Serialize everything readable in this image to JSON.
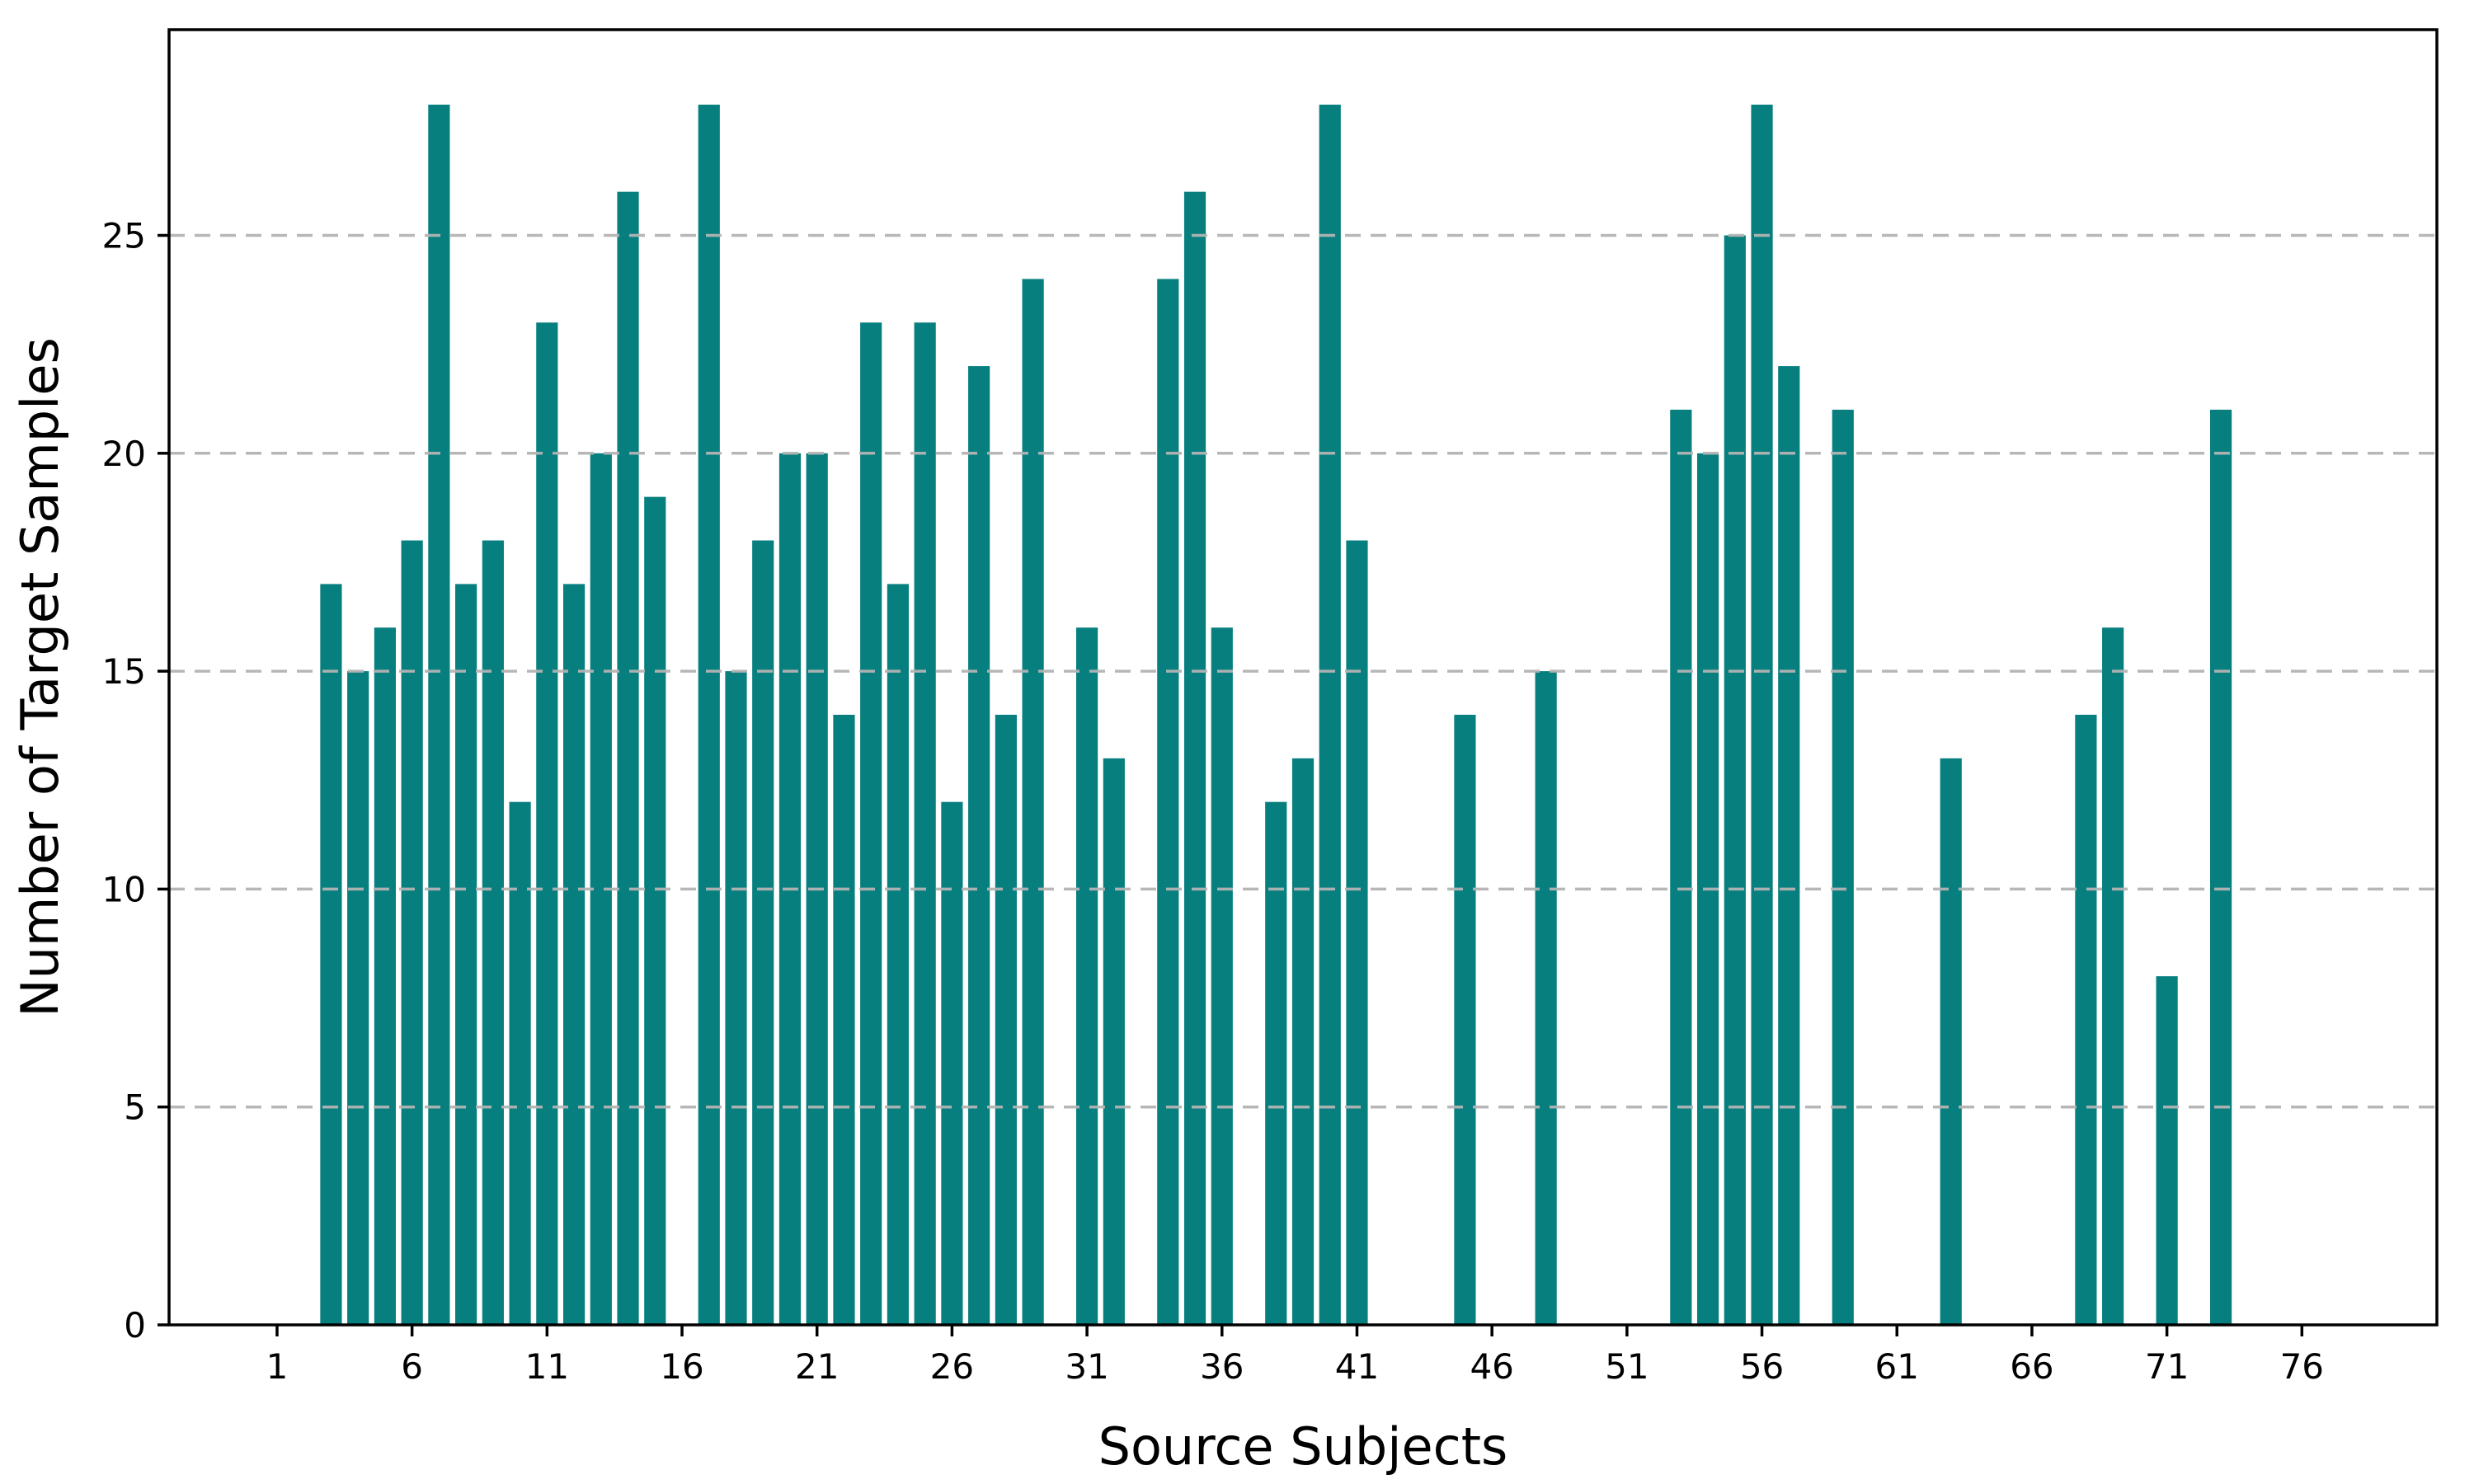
{
  "chart_data": {
    "type": "bar",
    "title": "",
    "xlabel": "Source Subjects",
    "ylabel": "Number of Target Samples",
    "x": [
      3,
      4,
      5,
      6,
      7,
      8,
      9,
      10,
      11,
      12,
      13,
      14,
      15,
      17,
      18,
      19,
      20,
      21,
      22,
      23,
      24,
      25,
      26,
      27,
      28,
      29,
      31,
      32,
      34,
      35,
      36,
      38,
      39,
      40,
      41,
      45,
      48,
      53,
      54,
      55,
      56,
      57,
      59,
      63,
      68,
      69,
      71,
      73
    ],
    "values": [
      17,
      15,
      16,
      18,
      28,
      17,
      18,
      12,
      23,
      17,
      20,
      26,
      19,
      28,
      15,
      18,
      20,
      20,
      14,
      23,
      17,
      23,
      12,
      22,
      14,
      24,
      16,
      13,
      24,
      26,
      16,
      12,
      13,
      28,
      18,
      14,
      15,
      21,
      20,
      25,
      28,
      22,
      21,
      13,
      14,
      16,
      8,
      21
    ],
    "xticks": [
      1,
      6,
      11,
      16,
      21,
      26,
      31,
      36,
      41,
      46,
      51,
      56,
      61,
      66,
      71,
      76
    ],
    "yticks": [
      0,
      5,
      10,
      15,
      20,
      25
    ],
    "xlim": [
      -3,
      81
    ],
    "ylim": [
      0,
      29.72
    ],
    "bar_width_units": 0.8,
    "grid": "horizontal dashed, drawn above bars",
    "legend_position": "none",
    "colors": {
      "bar": "#087f7f",
      "grid": "#b4b4b4",
      "spine": "#000000",
      "text": "#000000",
      "background": "#ffffff"
    }
  }
}
